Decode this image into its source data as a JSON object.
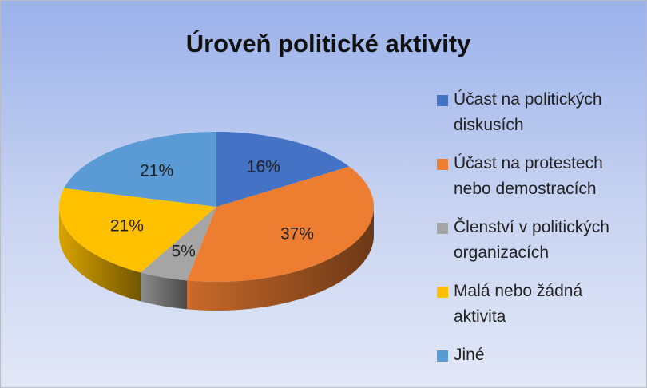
{
  "chart_data": {
    "type": "pie",
    "title": "Úroveň politické aktivity",
    "categories": [
      "Účast na politických diskusích",
      "Účast na protestech nebo demostracích",
      "Členství v politických organizacích",
      "Malá nebo žádná aktivita",
      "Jiné"
    ],
    "values": [
      16,
      37,
      5,
      21,
      21
    ],
    "value_labels": [
      "16%",
      "37%",
      "5%",
      "21%",
      "21%"
    ],
    "colors": [
      "#4472c4",
      "#ed7d31",
      "#a5a5a5",
      "#ffc000",
      "#5b9bd5"
    ],
    "legend": "right"
  }
}
